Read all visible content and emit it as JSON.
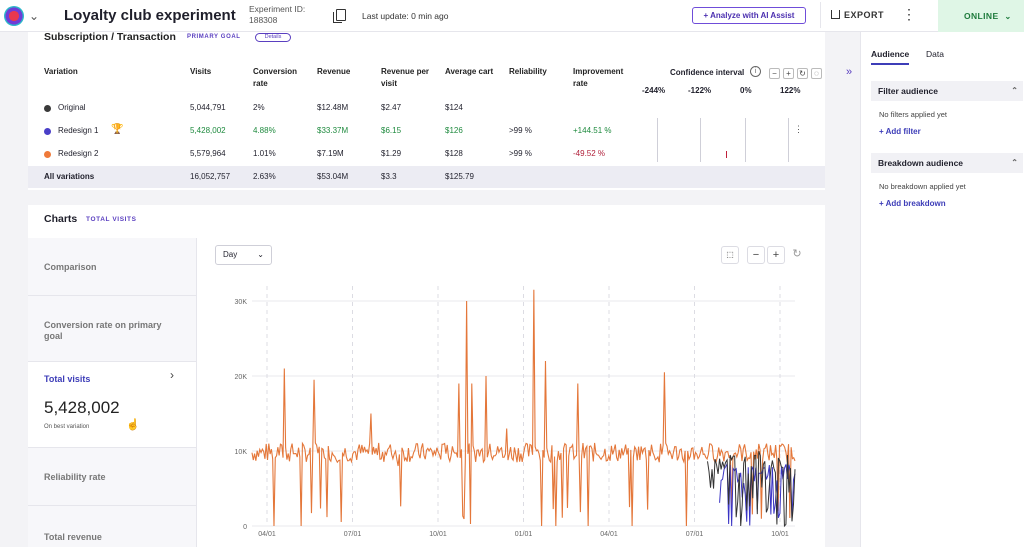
{
  "header": {
    "title": "Loyalty club experiment",
    "experiment_id_label": "Experiment ID:",
    "experiment_id": "188308",
    "last_update": "Last update: 0 min ago",
    "ai_button": "+ Analyze with AI Assist",
    "export_label": "EXPORT",
    "status": "ONLINE"
  },
  "table": {
    "section_title": "Subscription / Transaction",
    "goal_tag": "PRIMARY GOAL",
    "details_pill": "Details",
    "columns": [
      "Variation",
      "Visits",
      "Conversion rate",
      "Revenue",
      "Revenue per visit",
      "Average cart",
      "Reliability",
      "Improvement rate"
    ],
    "confidence_interval": "Confidence interval",
    "ci_ticks": [
      "-244%",
      "-122%",
      "0%",
      "122%"
    ],
    "rows": [
      {
        "variation": "Original",
        "dot_color": "#3a3a3a",
        "visits": "5,044,791",
        "conversion": "2%",
        "revenue": "$12.48M",
        "rpv": "$2.47",
        "cart": "$124",
        "reliability": "",
        "improvement": ""
      },
      {
        "variation": "Redesign 1",
        "dot_color": "#4a3fc8",
        "visits": "5,428,002",
        "conversion": "4.88%",
        "revenue": "$33.37M",
        "rpv": "$6.15",
        "cart": "$126",
        "reliability": ">99 %",
        "improvement": "+144.51 %"
      },
      {
        "variation": "Redesign 2",
        "dot_color": "#ef7a3a",
        "visits": "5,579,964",
        "conversion": "1.01%",
        "revenue": "$7.19M",
        "rpv": "$1.29",
        "cart": "$128",
        "reliability": ">99 %",
        "improvement": "-49.52 %"
      },
      {
        "variation": "All variations",
        "dot_color": "",
        "visits": "16,052,757",
        "conversion": "2.63%",
        "revenue": "$53.04M",
        "rpv": "$3.3",
        "cart": "$125.79",
        "reliability": "",
        "improvement": ""
      }
    ]
  },
  "charts": {
    "title": "Charts",
    "tag": "TOTAL VISITS",
    "granularity": "Day",
    "metrics": [
      {
        "label": "Comparison"
      },
      {
        "label": "Conversion rate on primary goal"
      },
      {
        "label": "Total visits",
        "value": "5,428,002",
        "sub": "On best variation"
      },
      {
        "label": "Reliability rate"
      },
      {
        "label": "Total revenue"
      }
    ]
  },
  "right_panel": {
    "tabs": [
      "Audience",
      "Data"
    ],
    "filter_title": "Filter audience",
    "filter_empty": "No filters applied yet",
    "add_filter": "+ Add filter",
    "breakdown_title": "Breakdown audience",
    "breakdown_empty": "No breakdown applied yet",
    "add_breakdown": "+ Add breakdown"
  },
  "colors": {
    "orange": "#e4773a",
    "blue": "#3a34c4",
    "dark": "#333333"
  },
  "chart_data": {
    "type": "line",
    "title": "",
    "ylim": [
      0,
      32000
    ],
    "yticks": [
      "0",
      "10K",
      "20K",
      "30K"
    ],
    "xticks": [
      "04/01",
      "07/01",
      "10/01",
      "01/01",
      "04/01",
      "07/01",
      "10/01"
    ],
    "series": [
      {
        "name": "Redesign 2",
        "color": "#e4773a",
        "baseline": 9800,
        "spikes": [
          [
            0.04,
            0
          ],
          [
            0.06,
            21000
          ],
          [
            0.09,
            0
          ],
          [
            0.115,
            19500
          ],
          [
            0.22,
            15000
          ],
          [
            0.27,
            8000
          ],
          [
            0.355,
            11000
          ],
          [
            0.38,
            19000
          ],
          [
            0.395,
            30000
          ],
          [
            0.405,
            19000
          ],
          [
            0.43,
            20000
          ],
          [
            0.47,
            13000
          ],
          [
            0.52,
            31500
          ],
          [
            0.54,
            22000
          ],
          [
            0.56,
            0
          ],
          [
            0.6,
            19000
          ],
          [
            0.62,
            0
          ],
          [
            0.7,
            0
          ],
          [
            0.76,
            20500
          ],
          [
            0.8,
            0
          ]
        ]
      },
      {
        "name": "Redesign 1",
        "color": "#3a34c4",
        "start": 0.86,
        "baseline": 7000
      },
      {
        "name": "Original",
        "color": "#333333",
        "start": 0.84,
        "baseline": 8200
      }
    ]
  }
}
